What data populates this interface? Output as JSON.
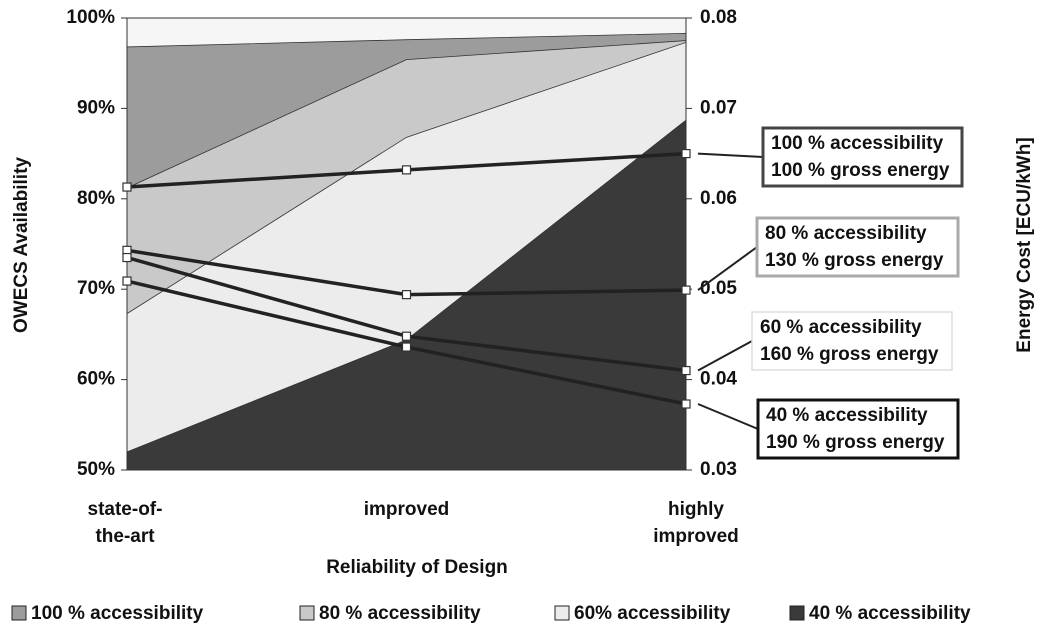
{
  "chart_data": {
    "type": "area",
    "x_label": "Reliability of Design",
    "y_label": "OWECS Availability",
    "y2_label": "Energy Cost [ECU/kWh]",
    "categories": [
      [
        "state-of-",
        "the-art"
      ],
      [
        "improved"
      ],
      [
        "highly",
        "improved"
      ]
    ],
    "ylim": [
      50,
      100
    ],
    "yticks": [
      {
        "value": 50,
        "label": "50%"
      },
      {
        "value": 60,
        "label": "60%"
      },
      {
        "value": 70,
        "label": "70%"
      },
      {
        "value": 80,
        "label": "80%"
      },
      {
        "value": 90,
        "label": "90%"
      },
      {
        "value": 100,
        "label": "100%"
      }
    ],
    "y2lim": [
      0.03,
      0.08
    ],
    "y2ticks": [
      0.03,
      0.04,
      0.05,
      0.06,
      0.07,
      0.08
    ],
    "series": [
      {
        "name": "100 % accessibility",
        "color": "#9c9c9c",
        "values": [
          96.8,
          97.6,
          98.3
        ]
      },
      {
        "name": "80 % accessibility",
        "color": "#c9c9c9",
        "values": [
          81.2,
          95.4,
          97.5
        ]
      },
      {
        "name": "60% accessibility",
        "color": "#ececec",
        "values": [
          67.3,
          86.8,
          97.3
        ]
      },
      {
        "name": "40 % accessibility",
        "color": "#3a3a3a",
        "values": [
          52,
          64.4,
          88.7
        ]
      }
    ],
    "line_series": [
      {
        "type": "line",
        "axis": "y2",
        "color": "#222222",
        "label": [
          "100 % accessibility",
          "100 % gross energy"
        ],
        "label_border": "#444444",
        "values": [
          0.0613,
          0.0632,
          0.065
        ]
      },
      {
        "type": "line",
        "axis": "y2",
        "color": "#222222",
        "label": [
          "80 % accessibility",
          "130 % gross energy"
        ],
        "label_border": "#aaaaaa",
        "values": [
          0.0543,
          0.0494,
          0.0499
        ]
      },
      {
        "type": "line",
        "axis": "y2",
        "color": "#222222",
        "label": [
          "60 % accessibility",
          "160 % gross energy"
        ],
        "label_border": "#dddddd",
        "values": [
          0.0535,
          0.0448,
          0.041
        ]
      },
      {
        "type": "line",
        "axis": "y2",
        "color": "#222222",
        "label": [
          "40 % accessibility",
          "190 % gross energy"
        ],
        "label_border": "#111111",
        "values": [
          0.0509,
          0.0436,
          0.0373
        ]
      }
    ]
  }
}
